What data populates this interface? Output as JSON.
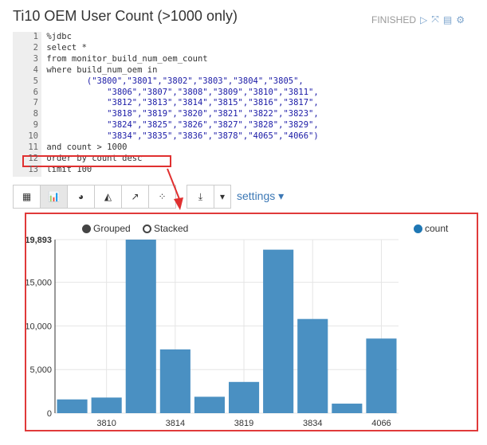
{
  "paragraph": {
    "title": "Ti10 OEM User Count (>1000 only)",
    "status": "FINISHED",
    "icons": [
      "play-icon",
      "collapse-icon",
      "book-icon",
      "gear-icon"
    ]
  },
  "editor": {
    "lines": [
      {
        "n": "1",
        "t": "%jdbc"
      },
      {
        "n": "2",
        "t": "select *"
      },
      {
        "n": "3",
        "t": "from monitor_build_num_oem_count"
      },
      {
        "n": "4",
        "t": "where build_num_oem in"
      },
      {
        "n": "5",
        "t": "        (\"3800\",\"3801\",\"3802\",\"3803\",\"3804\",\"3805\","
      },
      {
        "n": "6",
        "t": "            \"3806\",\"3807\",\"3808\",\"3809\",\"3810\",\"3811\","
      },
      {
        "n": "7",
        "t": "            \"3812\",\"3813\",\"3814\",\"3815\",\"3816\",\"3817\","
      },
      {
        "n": "8",
        "t": "            \"3818\",\"3819\",\"3820\",\"3821\",\"3822\",\"3823\","
      },
      {
        "n": "9",
        "t": "            \"3824\",\"3825\",\"3826\",\"3827\",\"3828\",\"3829\","
      },
      {
        "n": "10",
        "t": "            \"3834\",\"3835\",\"3836\",\"3878\",\"4065\",\"4066\")"
      },
      {
        "n": "11",
        "t": "and count > 1000"
      },
      {
        "n": "12",
        "t": "order by count desc"
      },
      {
        "n": "13",
        "t": "limit 100"
      }
    ]
  },
  "toolbar": {
    "buttons": [
      "table-icon",
      "bar-chart-icon",
      "pie-chart-icon",
      "area-chart-icon",
      "line-chart-icon",
      "scatter-chart-icon"
    ],
    "active": "bar-chart-icon",
    "settings_label": "settings"
  },
  "legend": {
    "grouped": "Grouped",
    "stacked": "Stacked",
    "mode": "Grouped"
  },
  "chart_data": {
    "type": "bar",
    "categories": [
      "",
      "3810",
      "",
      "3814",
      "",
      "3819",
      "",
      "3834",
      "",
      "4066"
    ],
    "series": [
      {
        "name": "count",
        "color": "#4a90c2",
        "values": [
          1577,
          1789,
          19893,
          7308,
          1880,
          3578,
          18741,
          10796,
          1092,
          8552
        ]
      }
    ],
    "ylim": [
      0,
      19893
    ],
    "yticks": [
      "0",
      "5,000",
      "10,000",
      "15,000",
      "19,893"
    ],
    "ytick_values": [
      0,
      5000,
      10000,
      15000,
      19893
    ],
    "grid": true,
    "legend_position": "top-right"
  }
}
